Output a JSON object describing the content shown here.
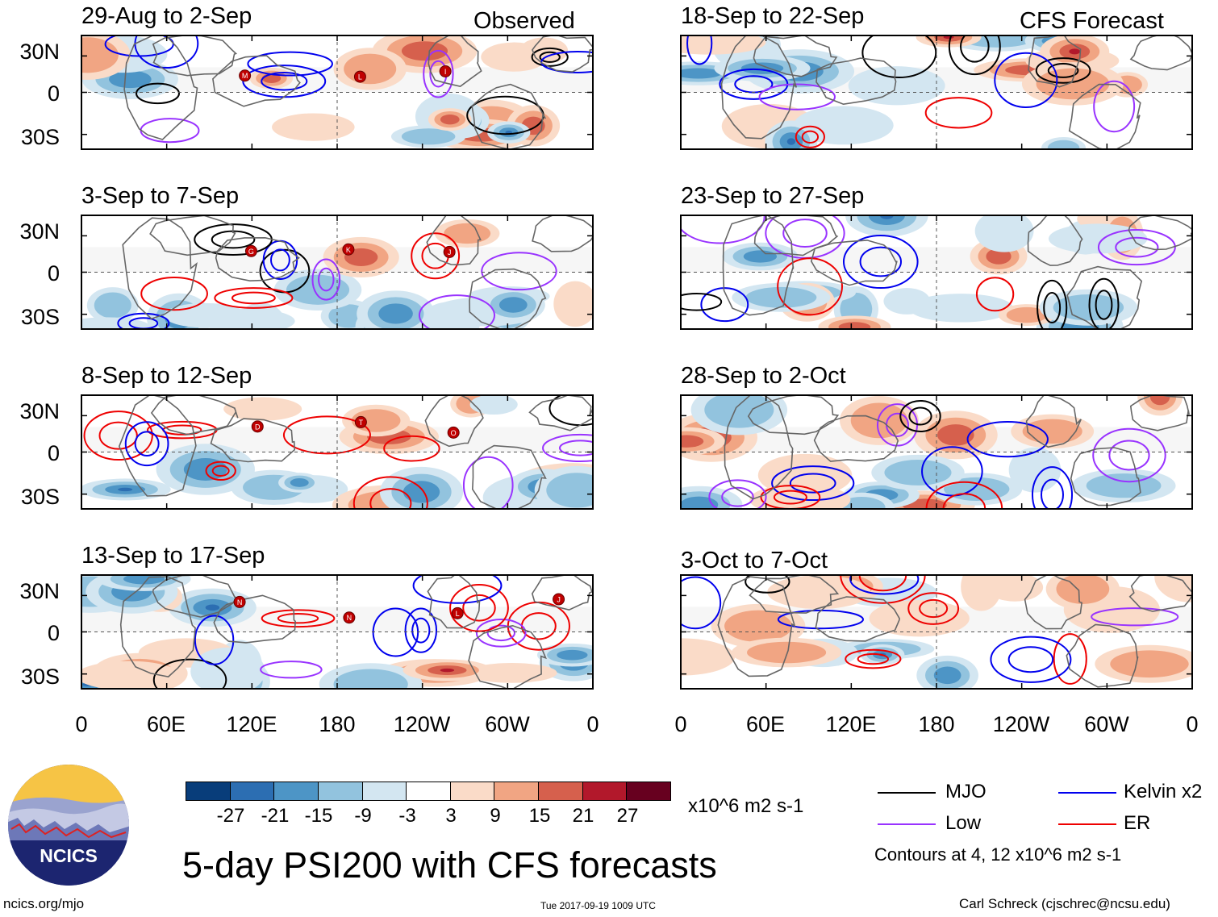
{
  "column_headers": {
    "left": "Observed",
    "right": "CFS Forecast"
  },
  "panels": [
    {
      "title": "29-Aug to 2-Sep",
      "storms": [
        "M",
        "L",
        "I"
      ]
    },
    {
      "title": "3-Sep to 7-Sep",
      "storms": [
        "G",
        "K",
        "J"
      ]
    },
    {
      "title": "8-Sep to 12-Sep",
      "storms": [
        "D",
        "T",
        "O"
      ]
    },
    {
      "title": "13-Sep to 17-Sep",
      "storms": [
        "N",
        "N",
        "L",
        "J"
      ]
    },
    {
      "title": "18-Sep to 22-Sep",
      "storms": []
    },
    {
      "title": "23-Sep to 27-Sep",
      "storms": []
    },
    {
      "title": "28-Sep to 2-Oct",
      "storms": []
    },
    {
      "title": "3-Oct to 7-Oct",
      "storms": []
    }
  ],
  "lat_labels": [
    "30N",
    "0",
    "30S"
  ],
  "lon_labels": [
    "0",
    "60E",
    "120E",
    "180",
    "120W",
    "60W",
    "0"
  ],
  "colorbar": {
    "colors": [
      "#083d7a",
      "#2c6eb2",
      "#4d95c6",
      "#92c3de",
      "#d3e6f1",
      "#ffffff",
      "#fadbc8",
      "#f1a583",
      "#d6604d",
      "#b2182b",
      "#67001f"
    ],
    "ticks": [
      "-27",
      "-21",
      "-15",
      "-9",
      "-3",
      "3",
      "9",
      "15",
      "21",
      "27"
    ],
    "units": "x10^6 m2 s-1"
  },
  "legend": {
    "items": [
      {
        "label": "MJO",
        "color": "#000000"
      },
      {
        "label": "Low",
        "color": "#9933ff"
      },
      {
        "label": "Kelvin x2",
        "color": "#0000ee"
      },
      {
        "label": "ER",
        "color": "#ee0000"
      }
    ],
    "note": "Contours at 4, 12 x10^6 m2 s-1"
  },
  "logo_text": "NCICS",
  "main_title": "5-day PSI200 with CFS forecasts",
  "footer": {
    "url": "ncics.org/mjo",
    "timestamp": "Tue 2017-09-19 1009 UTC",
    "author": "Carl Schreck (cjschrec@ncsu.edu)"
  }
}
